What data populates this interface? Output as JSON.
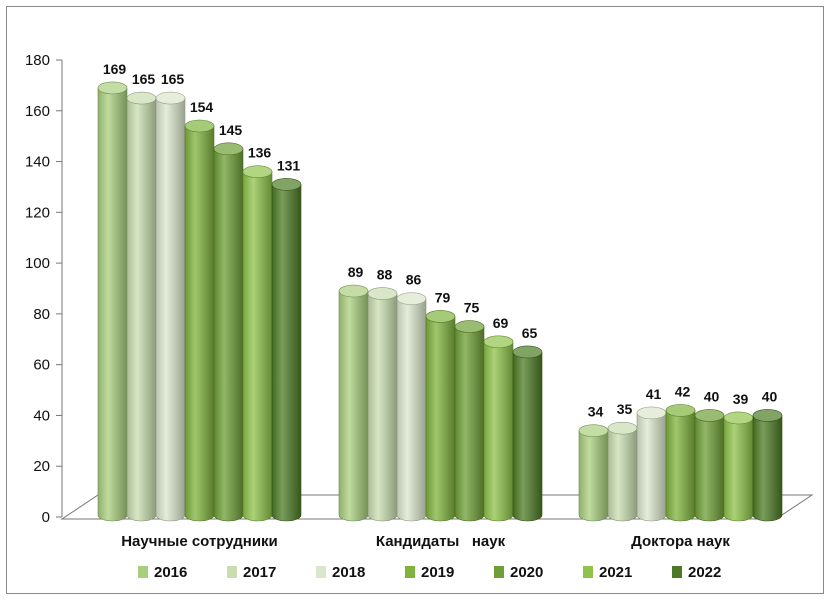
{
  "chart_data": {
    "type": "bar",
    "title": "",
    "xlabel": "",
    "ylabel": "",
    "ylim": [
      0,
      180
    ],
    "yticks": [
      0,
      20,
      40,
      60,
      80,
      100,
      120,
      140,
      160,
      180
    ],
    "categories": [
      "Научные сотрудники",
      "Кандидаты   наук",
      "Доктора наук"
    ],
    "series": [
      {
        "name": "2016",
        "values": [
          169,
          89,
          34
        ],
        "color": "#a9cf7e"
      },
      {
        "name": "2017",
        "values": [
          165,
          88,
          35
        ],
        "color": "#c9ddb0"
      },
      {
        "name": "2018",
        "values": [
          165,
          86,
          41
        ],
        "color": "#dbe7cc"
      },
      {
        "name": "2019",
        "values": [
          154,
          79,
          42
        ],
        "color": "#7fb33e"
      },
      {
        "name": "2020",
        "values": [
          145,
          75,
          40
        ],
        "color": "#6e9f36"
      },
      {
        "name": "2021",
        "values": [
          136,
          69,
          39
        ],
        "color": "#8fc34a"
      },
      {
        "name": "2022",
        "values": [
          131,
          65,
          40
        ],
        "color": "#4d7b25"
      }
    ],
    "legend_position": "bottom",
    "grid": false,
    "style": "3d-cylinder"
  }
}
